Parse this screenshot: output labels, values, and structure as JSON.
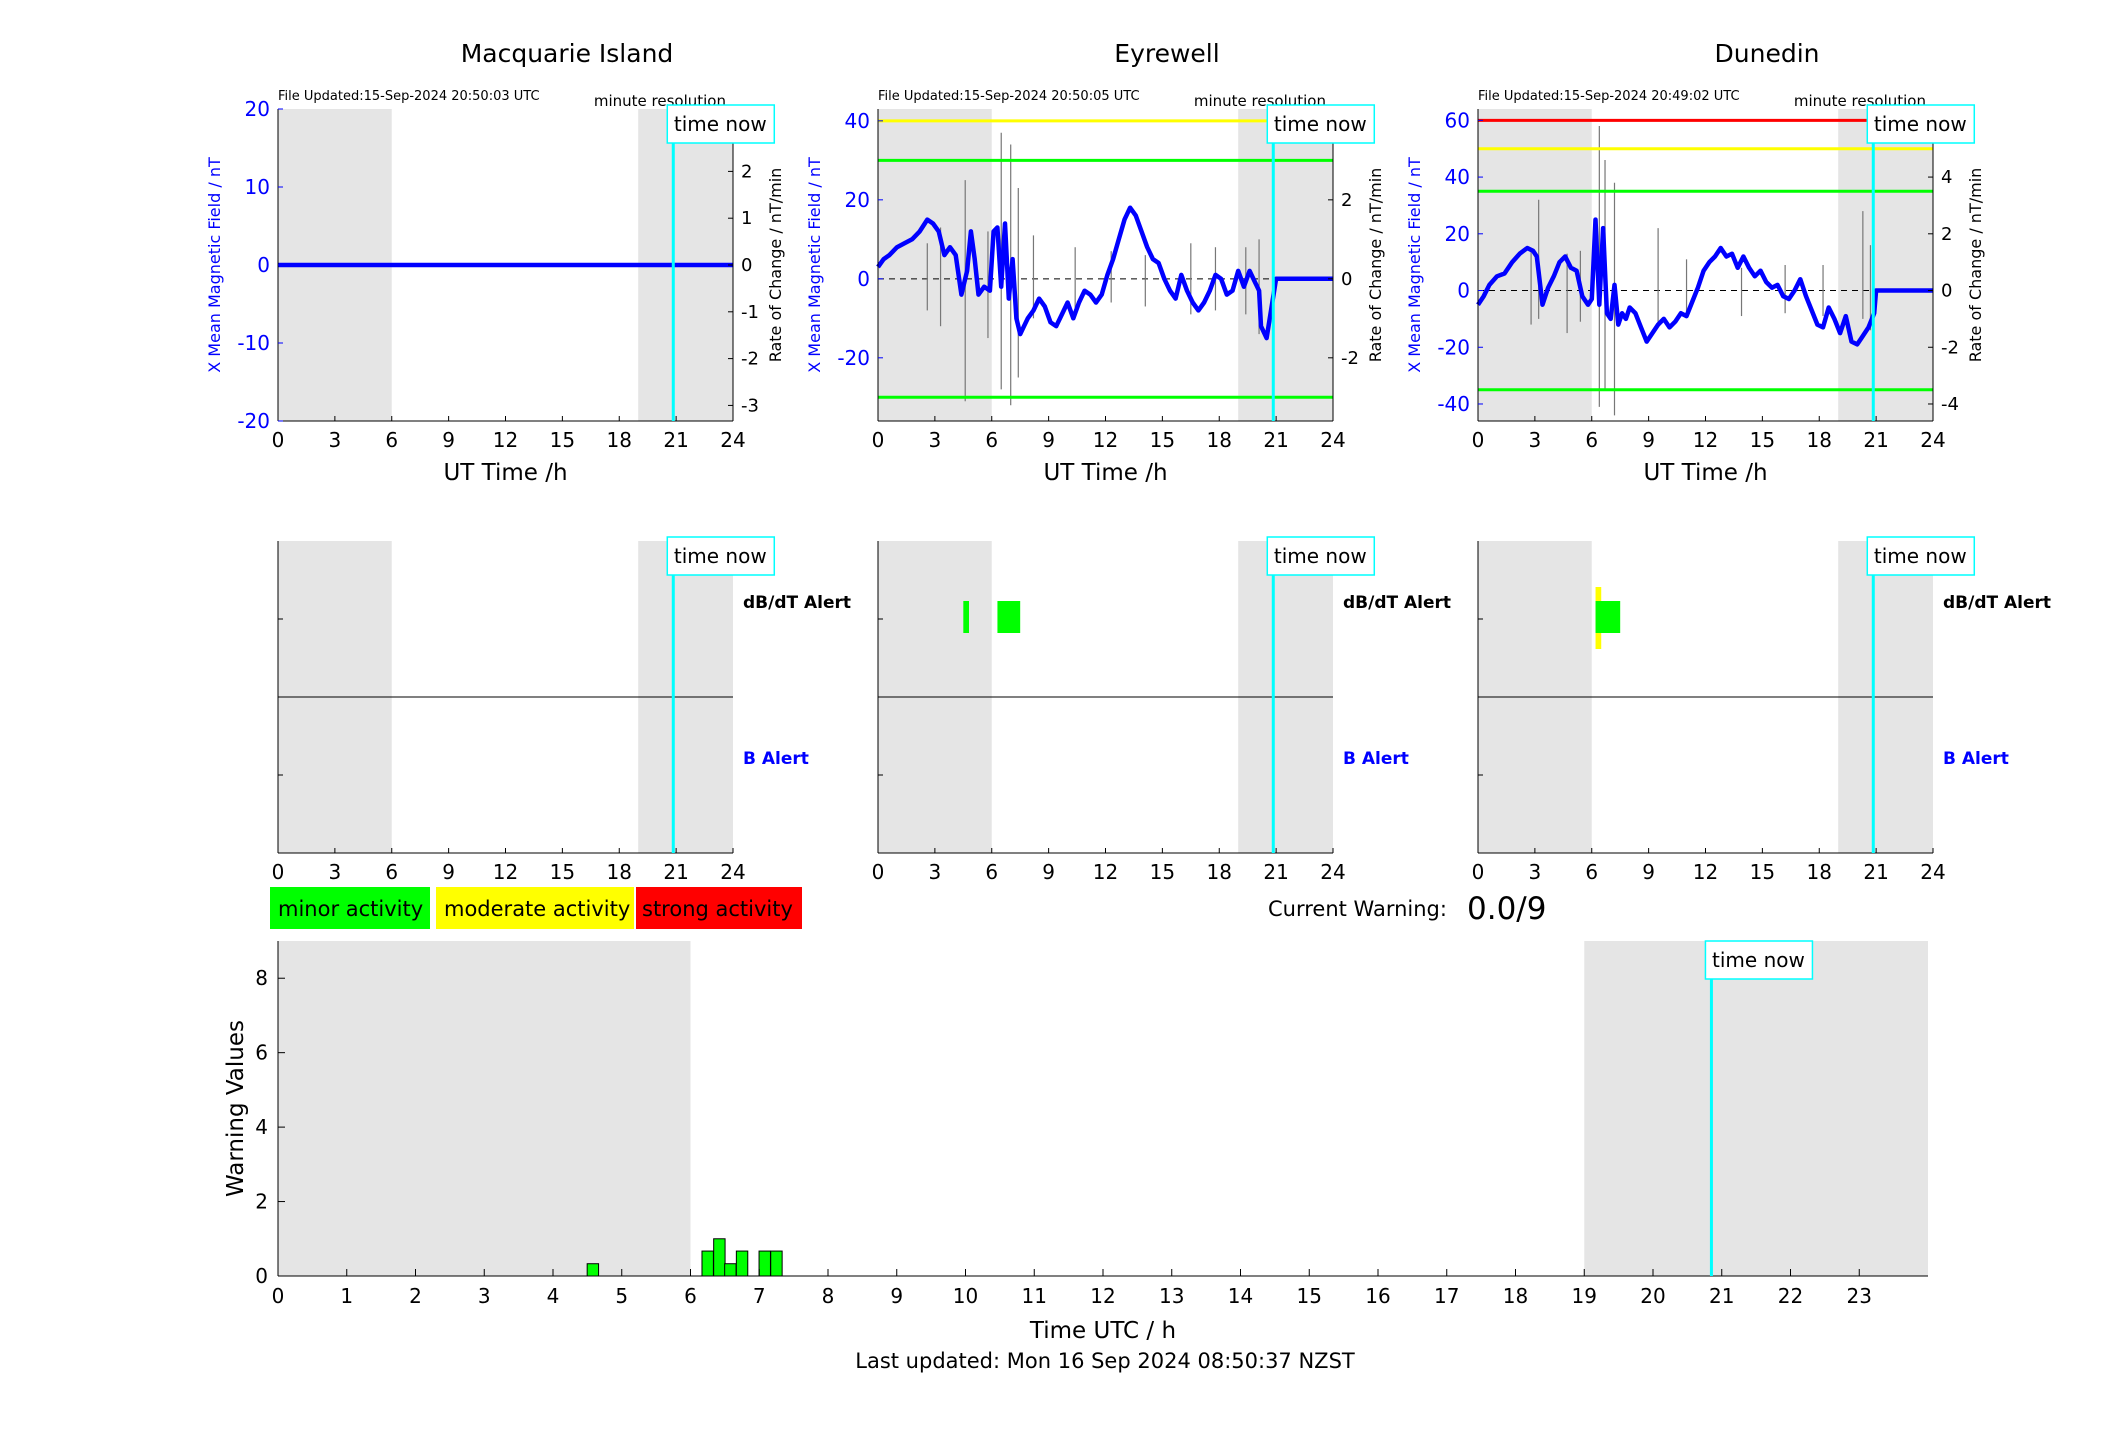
{
  "colors": {
    "x_axis": "#0000ff",
    "series": "#0000ff",
    "night": "#e5e5e5",
    "time_now": "#00ffff",
    "minor": "#00ff00",
    "moderate": "#ffff00",
    "strong": "#ff0000"
  },
  "common": {
    "time_now_label": "time now",
    "resolution_label": "minute resolution",
    "ut_xlabel": "UT Time /h",
    "left_ylabel": "X Mean Magnetic Field / nT",
    "right_ylabel": "Rate of Change / nT/min",
    "dbdt_alert_label": "dB/dT Alert",
    "b_alert_label": "B Alert",
    "time_now_hour": 20.85
  },
  "legend": {
    "minor": "minor activity",
    "moderate": "moderate activity",
    "strong": "strong activity"
  },
  "current_warning": {
    "label": "Current Warning:",
    "value": "0.0/9"
  },
  "footer": {
    "last_updated": "Last updated: Mon 16 Sep 2024 08:50:37 NZST"
  },
  "chart_data": [
    {
      "type": "line",
      "title": "Macquarie Island",
      "file_updated": "File Updated:15-Sep-2024 20:50:03 UTC",
      "xlabel": "UT Time /h",
      "ylabel": "X Mean Magnetic Field / nT",
      "y2label": "Rate of Change / nT/min",
      "xlim": [
        0,
        24
      ],
      "ylim": [
        -20,
        20
      ],
      "y2lim": [
        -3.333,
        3.333
      ],
      "xticks": [
        0,
        3,
        6,
        9,
        12,
        15,
        18,
        21,
        24
      ],
      "yticks": [
        -20,
        -10,
        0,
        10,
        20
      ],
      "y2ticks": [
        -3,
        -2,
        -1,
        0,
        1,
        2,
        3
      ],
      "night_bands": [
        [
          0,
          6
        ],
        [
          19,
          24
        ]
      ],
      "thresholds": [],
      "series": [
        {
          "x": [
            0,
            24
          ],
          "y": [
            0,
            0
          ]
        }
      ],
      "rate": [],
      "alerts": {
        "dbdt": [],
        "b": []
      }
    },
    {
      "type": "line",
      "title": "Eyrewell",
      "file_updated": "File Updated:15-Sep-2024 20:50:05 UTC",
      "xlabel": "UT Time /h",
      "ylabel": "X Mean Magnetic Field / nT",
      "y2label": "Rate of Change / nT/min",
      "xlim": [
        0,
        24
      ],
      "ylim": [
        -36,
        43
      ],
      "y2lim": [
        -3.6,
        4.3
      ],
      "xticks": [
        0,
        3,
        6,
        9,
        12,
        15,
        18,
        21,
        24
      ],
      "yticks": [
        -20,
        0,
        20,
        40
      ],
      "y2ticks": [
        -2,
        0,
        2,
        4
      ],
      "night_bands": [
        [
          0,
          6
        ],
        [
          19,
          24
        ]
      ],
      "thresholds": [
        {
          "value": 40,
          "color": "#ffff00"
        },
        {
          "value": 30,
          "color": "#00ff00"
        },
        {
          "value": -30,
          "color": "#00ff00"
        }
      ],
      "series": [
        {
          "x": [
            0,
            0.3,
            0.6,
            1.0,
            1.4,
            1.8,
            2.2,
            2.6,
            2.9,
            3.2,
            3.5,
            3.8,
            4.1,
            4.4,
            4.7,
            4.9,
            5.1,
            5.3,
            5.6,
            5.9,
            6.1,
            6.3,
            6.5,
            6.7,
            6.9,
            7.1,
            7.3,
            7.5,
            7.7,
            7.9,
            8.2,
            8.5,
            8.8,
            9.1,
            9.4,
            9.7,
            10.0,
            10.3,
            10.6,
            10.9,
            11.2,
            11.5,
            11.8,
            12.1,
            12.4,
            12.7,
            13.0,
            13.3,
            13.6,
            13.9,
            14.2,
            14.5,
            14.8,
            15.1,
            15.4,
            15.7,
            16.0,
            16.3,
            16.6,
            16.9,
            17.2,
            17.5,
            17.8,
            18.1,
            18.4,
            18.7,
            19.0,
            19.3,
            19.6,
            19.9,
            20.1,
            20.2,
            20.5,
            21.0,
            22.0,
            24.0
          ],
          "y": [
            3,
            5,
            6,
            8,
            9,
            10,
            12,
            15,
            14,
            12,
            6,
            8,
            6,
            -4,
            2,
            12,
            5,
            -4,
            -2,
            -3,
            12,
            13,
            -2,
            14,
            -5,
            5,
            -10,
            -14,
            -12,
            -10,
            -8,
            -5,
            -7,
            -11,
            -12,
            -9,
            -6,
            -10,
            -6,
            -3,
            -4,
            -6,
            -4,
            1,
            5,
            10,
            15,
            18,
            16,
            12,
            8,
            5,
            4,
            0,
            -3,
            -5,
            1,
            -3,
            -6,
            -8,
            -6,
            -3,
            1,
            0,
            -4,
            -3,
            2,
            -2,
            2,
            -1,
            -3,
            -12,
            -15,
            0,
            0,
            0
          ]
        }
      ],
      "rate": [
        {
          "x": [
            4.6,
            4.6
          ],
          "y": [
            -3.1,
            2.5
          ]
        },
        {
          "x": [
            6.5,
            6.5
          ],
          "y": [
            -2.8,
            3.7
          ]
        },
        {
          "x": [
            7.0,
            7.0
          ],
          "y": [
            -3.2,
            3.4
          ]
        },
        {
          "x": [
            7.4,
            7.4
          ],
          "y": [
            -2.5,
            2.3
          ]
        },
        {
          "x": [
            3.3,
            3.3
          ],
          "y": [
            -1.2,
            1.3
          ]
        },
        {
          "x": [
            2.6,
            2.6
          ],
          "y": [
            -0.8,
            0.9
          ]
        },
        {
          "x": [
            5.8,
            5.8
          ],
          "y": [
            -1.5,
            1.2
          ]
        },
        {
          "x": [
            8.2,
            8.2
          ],
          "y": [
            -1.0,
            1.1
          ]
        },
        {
          "x": [
            10.4,
            10.4
          ],
          "y": [
            -0.9,
            0.8
          ]
        },
        {
          "x": [
            12.3,
            12.3
          ],
          "y": [
            -0.6,
            0.7
          ]
        },
        {
          "x": [
            14.1,
            14.1
          ],
          "y": [
            -0.7,
            0.6
          ]
        },
        {
          "x": [
            16.5,
            16.5
          ],
          "y": [
            -0.9,
            0.9
          ]
        },
        {
          "x": [
            17.8,
            17.8
          ],
          "y": [
            -0.8,
            0.8
          ]
        },
        {
          "x": [
            19.4,
            19.4
          ],
          "y": [
            -0.9,
            0.8
          ]
        },
        {
          "x": [
            20.1,
            20.1
          ],
          "y": [
            -1.4,
            1.0
          ]
        }
      ],
      "alerts": {
        "dbdt": [
          {
            "x": [
              4.5,
              4.8
            ],
            "color": "#00ff00"
          },
          {
            "x": [
              6.3,
              7.5
            ],
            "color": "#00ff00"
          }
        ],
        "b": []
      }
    },
    {
      "type": "line",
      "title": "Dunedin",
      "file_updated": "File Updated:15-Sep-2024 20:49:02 UTC",
      "xlabel": "UT Time /h",
      "ylabel": "X Mean Magnetic Field / nT",
      "y2label": "Rate of Change / nT/min",
      "xlim": [
        0,
        24
      ],
      "ylim": [
        -46,
        64
      ],
      "y2lim": [
        -4.6,
        6.4
      ],
      "xticks": [
        0,
        3,
        6,
        9,
        12,
        15,
        18,
        21,
        24
      ],
      "yticks": [
        -40,
        -20,
        0,
        20,
        40,
        60
      ],
      "y2ticks": [
        -4,
        -2,
        0,
        2,
        4,
        6
      ],
      "night_bands": [
        [
          0,
          6
        ],
        [
          19,
          24
        ]
      ],
      "thresholds": [
        {
          "value": 60,
          "color": "#ff0000"
        },
        {
          "value": 50,
          "color": "#ffff00"
        },
        {
          "value": 35,
          "color": "#00ff00"
        },
        {
          "value": -35,
          "color": "#00ff00"
        }
      ],
      "series": [
        {
          "x": [
            0,
            0.3,
            0.6,
            1.0,
            1.4,
            1.8,
            2.2,
            2.6,
            2.9,
            3.1,
            3.4,
            3.7,
            4.0,
            4.3,
            4.6,
            4.9,
            5.2,
            5.5,
            5.8,
            6.0,
            6.2,
            6.4,
            6.6,
            6.8,
            7.0,
            7.2,
            7.4,
            7.6,
            7.8,
            8.0,
            8.3,
            8.6,
            8.9,
            9.2,
            9.5,
            9.8,
            10.1,
            10.4,
            10.7,
            11.0,
            11.3,
            11.6,
            11.9,
            12.2,
            12.5,
            12.8,
            13.1,
            13.4,
            13.7,
            14.0,
            14.3,
            14.6,
            14.9,
            15.2,
            15.5,
            15.8,
            16.1,
            16.4,
            16.7,
            17.0,
            17.3,
            17.6,
            17.9,
            18.2,
            18.5,
            18.8,
            19.1,
            19.4,
            19.7,
            20.0,
            20.3,
            20.6,
            20.9,
            21.0,
            22.0,
            24.0
          ],
          "y": [
            -5,
            -2,
            2,
            5,
            6,
            10,
            13,
            15,
            14,
            12,
            -5,
            1,
            5,
            10,
            12,
            8,
            7,
            -2,
            -5,
            -3,
            25,
            -5,
            22,
            -8,
            -10,
            2,
            -12,
            -8,
            -10,
            -6,
            -8,
            -13,
            -18,
            -15,
            -12,
            -10,
            -13,
            -11,
            -8,
            -9,
            -4,
            1,
            7,
            10,
            12,
            15,
            12,
            13,
            8,
            12,
            8,
            5,
            7,
            3,
            1,
            2,
            -2,
            -3,
            0,
            4,
            -2,
            -7,
            -12,
            -13,
            -6,
            -10,
            -15,
            -9,
            -18,
            -19,
            -16,
            -13,
            -8,
            0,
            0,
            0
          ]
        }
      ],
      "rate": [
        {
          "x": [
            6.4,
            6.4
          ],
          "y": [
            -4.1,
            5.8
          ]
        },
        {
          "x": [
            6.7,
            6.7
          ],
          "y": [
            -3.5,
            4.6
          ]
        },
        {
          "x": [
            7.2,
            7.2
          ],
          "y": [
            -4.4,
            3.8
          ]
        },
        {
          "x": [
            3.2,
            3.2
          ],
          "y": [
            -1.0,
            3.2
          ]
        },
        {
          "x": [
            2.8,
            2.8
          ],
          "y": [
            -1.2,
            1.4
          ]
        },
        {
          "x": [
            4.7,
            4.7
          ],
          "y": [
            -1.5,
            1.3
          ]
        },
        {
          "x": [
            5.4,
            5.4
          ],
          "y": [
            -1.1,
            1.4
          ]
        },
        {
          "x": [
            9.5,
            9.5
          ],
          "y": [
            -1.3,
            2.2
          ]
        },
        {
          "x": [
            11.0,
            11.0
          ],
          "y": [
            -0.9,
            1.1
          ]
        },
        {
          "x": [
            13.9,
            13.9
          ],
          "y": [
            -0.9,
            0.8
          ]
        },
        {
          "x": [
            16.2,
            16.2
          ],
          "y": [
            -0.8,
            0.9
          ]
        },
        {
          "x": [
            18.2,
            18.2
          ],
          "y": [
            -0.9,
            0.9
          ]
        },
        {
          "x": [
            20.3,
            20.3
          ],
          "y": [
            -1.0,
            2.8
          ]
        },
        {
          "x": [
            20.7,
            20.7
          ],
          "y": [
            -1.4,
            1.6
          ]
        }
      ],
      "alerts": {
        "dbdt": [
          {
            "x": [
              6.2,
              6.5
            ],
            "color": "#ffff00"
          },
          {
            "x": [
              6.2,
              7.5
            ],
            "color": "#00ff00"
          }
        ],
        "b": []
      }
    },
    {
      "type": "bar",
      "xlabel": "Time UTC / h",
      "ylabel": "Warning Values",
      "xlim": [
        0,
        24
      ],
      "ylim": [
        0,
        9
      ],
      "xticks": [
        0,
        1,
        2,
        3,
        4,
        5,
        6,
        7,
        8,
        9,
        10,
        11,
        12,
        13,
        14,
        15,
        16,
        17,
        18,
        19,
        20,
        21,
        22,
        23
      ],
      "yticks": [
        0,
        2,
        4,
        6,
        8
      ],
      "night_bands": [
        [
          0,
          6
        ],
        [
          19,
          24
        ]
      ],
      "bar_width": 0.166,
      "x": [
        4.58,
        6.25,
        6.42,
        6.58,
        6.75,
        7.08,
        7.25
      ],
      "values": [
        0.33,
        0.67,
        1.0,
        0.33,
        0.67,
        0.67,
        0.67
      ],
      "color": "#00ff00"
    }
  ]
}
